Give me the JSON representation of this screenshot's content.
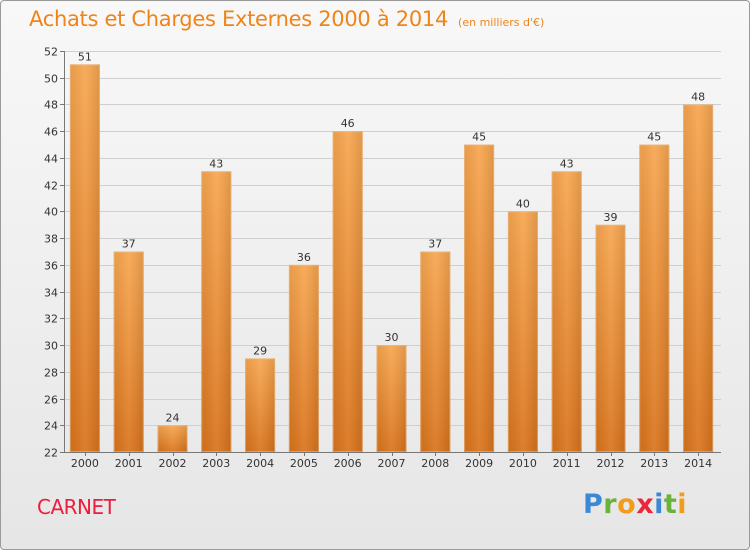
{
  "title": "Achats et Charges Externes 2000 à 2014",
  "subtitle": "(en milliers d'€)",
  "commune": "CARNET",
  "brand": {
    "letters": [
      {
        "ch": "P",
        "color": "#3b88d6"
      },
      {
        "ch": "r",
        "color": "#6ab33a"
      },
      {
        "ch": "o",
        "color": "#f39c1a"
      },
      {
        "ch": "x",
        "color": "#e8273b"
      },
      {
        "ch": "i",
        "color": "#3b88d6"
      },
      {
        "ch": "t",
        "color": "#6ab33a"
      },
      {
        "ch": "i",
        "color": "#f39c1a"
      }
    ]
  },
  "chart_data": {
    "type": "bar",
    "title": "Achats et Charges Externes 2000 à 2014",
    "subtitle": "(en milliers d'€)",
    "categories": [
      "2000",
      "2001",
      "2002",
      "2003",
      "2004",
      "2005",
      "2006",
      "2007",
      "2008",
      "2009",
      "2010",
      "2011",
      "2012",
      "2013",
      "2014"
    ],
    "values": [
      51,
      37,
      24,
      43,
      29,
      36,
      46,
      30,
      37,
      45,
      40,
      43,
      39,
      45,
      48
    ],
    "ylim": [
      22,
      52
    ],
    "yticks": [
      22,
      24,
      26,
      28,
      30,
      32,
      34,
      36,
      38,
      40,
      42,
      44,
      46,
      48,
      50,
      52
    ],
    "grid": true,
    "bar_color": "#f28c1e"
  }
}
